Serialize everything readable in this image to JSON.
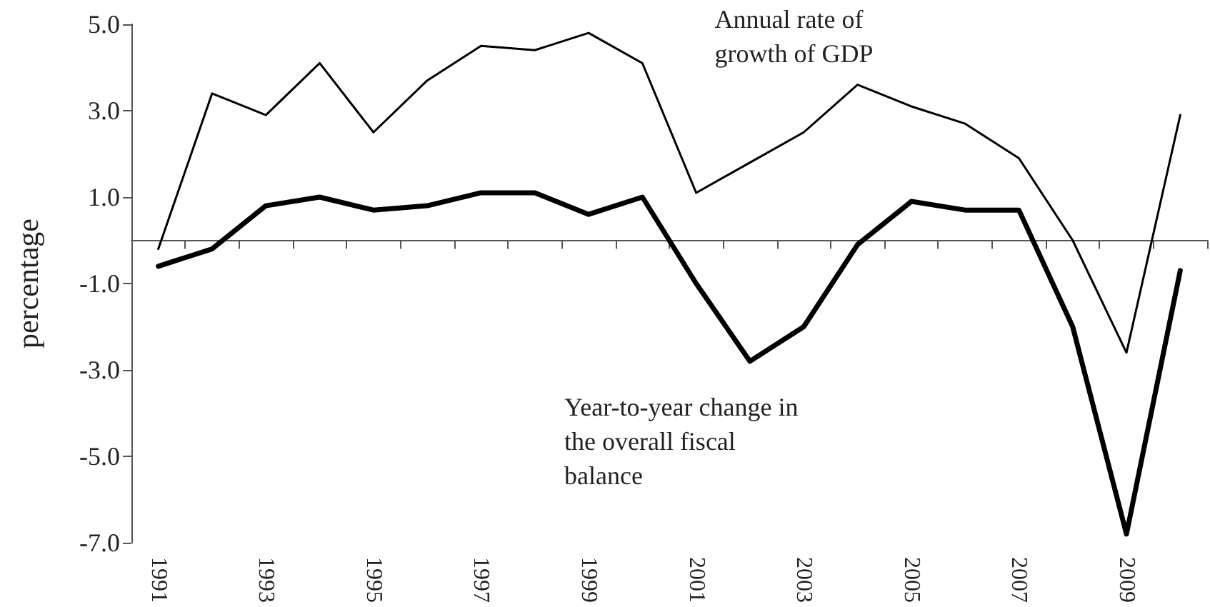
{
  "chart_data": {
    "type": "line",
    "ylabel": "percentage",
    "categories": [
      "1991",
      null,
      "1993",
      null,
      "1995",
      null,
      "1997",
      null,
      "1999",
      null,
      "2001",
      null,
      "2003",
      null,
      "2005",
      null,
      "2007",
      null,
      "2009",
      null
    ],
    "series": [
      {
        "name": "Annual rate of growth of GDP",
        "color": "#000000",
        "values": [
          -0.2,
          3.4,
          2.9,
          4.1,
          2.5,
          3.7,
          4.5,
          4.4,
          4.8,
          4.1,
          1.1,
          1.8,
          2.5,
          3.6,
          3.1,
          2.7,
          1.9,
          0.0,
          -2.6,
          2.9
        ]
      },
      {
        "name": "Year-to-year change in the overall fiscal balance",
        "color": "#000000",
        "values": [
          -0.6,
          -0.2,
          0.8,
          1.0,
          0.7,
          0.8,
          1.1,
          1.1,
          0.6,
          1.0,
          -1.0,
          -2.8,
          -2.0,
          -0.1,
          0.9,
          0.7,
          0.7,
          -2.0,
          -6.8,
          -0.7
        ]
      }
    ],
    "ylim": [
      -7,
      5
    ],
    "yticks": [
      {
        "value": -7,
        "label": "-7.0"
      },
      {
        "value": -5,
        "label": "-5.0"
      },
      {
        "value": -3,
        "label": "-3.0"
      },
      {
        "value": -1,
        "label": "-1.0"
      },
      {
        "value": 1,
        "label": "1.0"
      },
      {
        "value": 3,
        "label": "3.0"
      },
      {
        "value": 5,
        "label": "5.0"
      }
    ],
    "grid": false,
    "legend": false,
    "marker": "none",
    "line_style": "solid"
  }
}
